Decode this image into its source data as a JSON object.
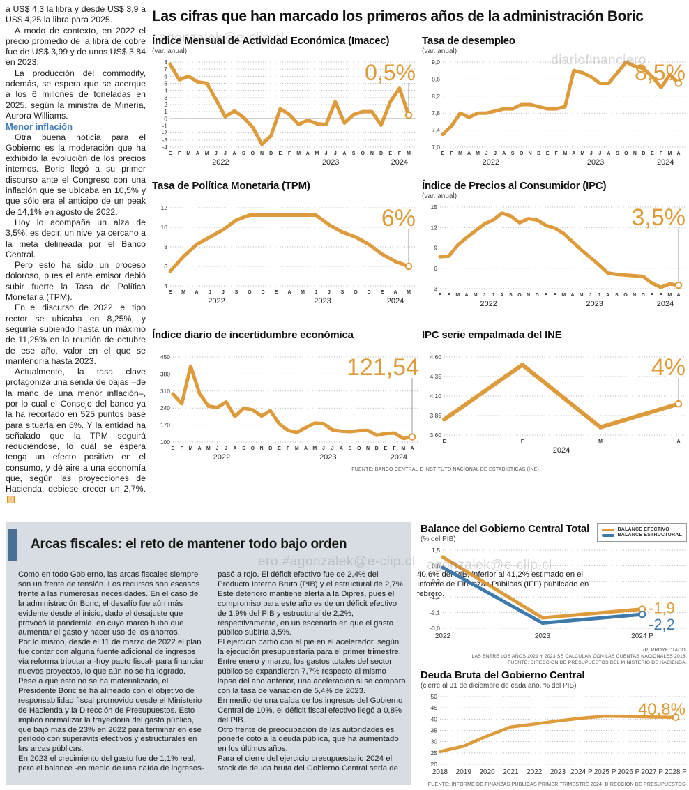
{
  "page": {
    "headline": "Las cifras que han marcado los primeros años de la administración Boric",
    "watermarks": [
      "agonzalek@e-clip.cl",
      "diariofinanciero",
      "ero.#agonzalek@e-clip.cl",
      "agonzalek@e-clip.cl"
    ]
  },
  "colors": {
    "orange": "#DE9B3C",
    "blue": "#3E7BAC",
    "subhead_blue": "#3E79B4",
    "accent_bar": "#4A7096",
    "box_bg": "#D8DDE4"
  },
  "left_article": {
    "intro_paragraphs": [
      "a US$ 4,3 la libra y desde US$ 3,9 a US$ 4,25 la libra para 2025.",
      "A modo de contexto, en 2022 el precio promedio de la libra de cobre fue de US$ 3,99 y de unos US$ 3,84 en 2023.",
      "La producción del commodity, además, se espera que se acerque a los 6 millones de toneladas en 2025, según la ministra de Minería, Aurora Williams."
    ],
    "subhead": "Menor inflación",
    "body_paragraphs": [
      "Otra buena noticia para el Gobierno es la moderación que ha exhibido la evolución de los precios internos. Boric llegó a su primer discurso ante el Congreso con una inflación que se ubicaba en 10,5% y que sólo era el anticipo de un peak de 14,1% en agosto de 2022.",
      "Hoy lo acompaña un alza de 3,5%, es decir, un nivel ya cercano a la meta delineada por el Banco Central.",
      "Pero esto ha sido un proceso doloroso, pues el ente emisor debió subir fuerte la Tasa de Política Monetaria (TPM).",
      "En el discurso de 2022, el tipo rector se ubicaba en 8,25%, y seguiría subiendo hasta un máximo de 11,25% en la reunión de octubre de ese año, valor en el que se mantendría hasta 2023.",
      "Actualmente, la tasa clave protagoniza una senda de bajas –de la mano de una menor inflación–, por lo cual el Consejo del banco ya la ha recortado en 525 puntos base para situarla en 6%. Y la entidad ha señalado que la TPM seguirá reduciéndose, lo cual se espera tenga un efecto positivo en el consumo, y dé aire a una economía que, según las proyecciones de Hacienda, debiese crecer un 2,7%."
    ]
  },
  "bottom_article": {
    "title": "Arcas fiscales: el reto de mantener todo bajo orden",
    "paragraphs": [
      "Como en todo Gobierno, las arcas fiscales siempre son un frente de tensión. Los recursos son escasos frente a las numerosas necesidades. En el caso de la administración Boric, el desafío fue aún más evidente desde el inicio, dado el desajuste que provocó la pandemia, en cuyo marco hubo que aumentar el gasto y hacer uso de los ahorros.",
      "Por lo mismo, desde el 11 de marzo de 2022 el plan fue contar con alguna fuente adicional de ingresos vía reforma tributaria -hoy pacto fiscal- para financiar nuevos proyectos, lo que aún no se ha logrado.",
      "Pese a que esto no se ha materializado, el Presidente Boric se ha alineado con el objetivo de responsabilidad fiscal promovido desde el Ministerio de Hacienda y la Dirección de Presupuestos. Esto implicó normalizar la trayectoria del gasto público, que bajó más de 23% en 2022 para terminar en ese período con superávits efectivos y estructurales en las arcas públicas.",
      "En 2023 el crecimiento del gasto fue de 1,1% real, pero el balance -en medio de una caída de ingresos- pasó a rojo. El déficit efectivo fue de 2,4% del Producto Interno Bruto (PIB) y el estructural de 2,7%. Este deterioro mantiene alerta a la Dipres, pues el compromiso para este año es de un déficit efectivo de 1,9% del PIB y estructural de 2,2%, respectivamente, en un escenario en que el gasto público subiría 3,5%.",
      "El ejercicio partió con el pie en el acelerador, según la ejecución presupuestaria para el primer trimestre. Entre enero y marzo, los gastos totales del sector público se expandieron 7,7% respecto al mismo lapso del año anterior, una aceleración si se compara con la tasa de variación de 5,4% de 2023.",
      "En medio de una caída de los ingresos del Gobierno Central de 10%, el déficit fiscal efectivo llegó a 0,8% del PIB.",
      "Otro frente de preocupación de las autoridades es ponerle coto a la deuda pública, que ha aumentado en los últimos años.",
      "Para el cierre del ejercicio presupuestario 2024 el stock de deuda bruta del Gobierno Central sería de 40,6% del PIB, inferior al 41,2% estimado en el Informe de Finanzas Públicas (IFP) publicado en febrero."
    ]
  },
  "chart_data": [
    {
      "id": "imacec",
      "type": "line",
      "title": "Índice Mensual de Actividad Económica (Imacec)",
      "subtitle": "(var. anual)",
      "ylim": [
        -4,
        8
      ],
      "ytick_vals": [
        8,
        7,
        6,
        5,
        4,
        3,
        2,
        1,
        0,
        -1,
        -2,
        -3,
        -4
      ],
      "ytick_labels": [
        "8",
        "7",
        "6",
        "5",
        "4",
        "3",
        "2",
        "1",
        "0",
        "-1",
        "-2",
        "-3",
        "-4"
      ],
      "zero_line": true,
      "x_labels": [
        "E",
        "F",
        "M",
        "A",
        "M",
        "J",
        "J",
        "A",
        "S",
        "O",
        "N",
        "D",
        "E",
        "F",
        "M",
        "A",
        "M",
        "J",
        "J",
        "A",
        "S",
        "O",
        "N",
        "D",
        "E",
        "F",
        "M"
      ],
      "years": [
        {
          "label": "2022",
          "start": 0,
          "end": 11
        },
        {
          "label": "2023",
          "start": 12,
          "end": 23
        },
        {
          "label": "2024",
          "start": 24,
          "end": 26
        }
      ],
      "series": [
        {
          "name": "Imacec",
          "color": "orange",
          "values": [
            7.7,
            5.5,
            6.0,
            5.2,
            5.0,
            2.7,
            0.3,
            1.1,
            0.2,
            -1.2,
            -3.6,
            -2.4,
            1.4,
            0.6,
            -0.8,
            -0.2,
            -0.7,
            -0.8,
            2.4,
            -0.6,
            0.6,
            1.0,
            1.0,
            -0.9,
            2.4,
            4.3,
            0.5
          ]
        }
      ],
      "callout": "0,5%",
      "callout_line": true
    },
    {
      "id": "desempleo",
      "type": "line",
      "title": "Tasa de desempleo",
      "subtitle": "(var. anual)",
      "ylim": [
        7.0,
        9.0
      ],
      "ytick_vals": [
        9.0,
        8.6,
        8.2,
        7.8,
        7.4,
        7.0
      ],
      "ytick_labels": [
        "9,0",
        "8,6",
        "8,2",
        "7,8",
        "7,4",
        "7,0"
      ],
      "x_labels": [
        "E",
        "F",
        "M",
        "A",
        "M",
        "J",
        "J",
        "A",
        "S",
        "O",
        "N",
        "D",
        "E",
        "F",
        "M",
        "A",
        "M",
        "J",
        "J",
        "A",
        "S",
        "O",
        "N",
        "D",
        "E",
        "F",
        "M",
        "A"
      ],
      "years": [
        {
          "label": "2022",
          "start": 0,
          "end": 11
        },
        {
          "label": "2023",
          "start": 12,
          "end": 23
        },
        {
          "label": "2024",
          "start": 24,
          "end": 27
        }
      ],
      "series": [
        {
          "name": "Tasa de desempleo",
          "color": "orange",
          "values": [
            7.3,
            7.5,
            7.8,
            7.7,
            7.8,
            7.8,
            7.85,
            7.9,
            7.9,
            8.0,
            8.0,
            7.95,
            7.9,
            7.9,
            7.95,
            8.8,
            8.75,
            8.65,
            8.5,
            8.5,
            8.75,
            9.0,
            8.9,
            8.85,
            8.65,
            8.4,
            8.7,
            8.5
          ]
        }
      ],
      "callout": "8,5%",
      "callout_line": true
    },
    {
      "id": "tpm",
      "type": "line",
      "title": "Tasa de Política Monetaria (TPM)",
      "subtitle": "",
      "ylim": [
        4,
        12
      ],
      "ytick_vals": [
        12,
        10,
        8,
        6,
        4
      ],
      "ytick_labels": [
        "12",
        "10",
        "8",
        "6",
        "4"
      ],
      "x_labels": [
        "E",
        "M",
        "A",
        "J",
        "J",
        "S",
        "O",
        "D",
        "E",
        "A",
        "M",
        "J",
        "J",
        "S",
        "O",
        "D",
        "E",
        "A",
        "M"
      ],
      "years": [
        {
          "label": "2022",
          "start": 0,
          "end": 7
        },
        {
          "label": "2023",
          "start": 8,
          "end": 15
        },
        {
          "label": "2024",
          "start": 16,
          "end": 18
        }
      ],
      "series": [
        {
          "name": "TPM",
          "color": "orange",
          "values": [
            5.5,
            7.0,
            8.25,
            9.0,
            9.75,
            10.75,
            11.25,
            11.25,
            11.25,
            11.25,
            11.25,
            11.25,
            10.25,
            9.5,
            9.0,
            8.25,
            7.25,
            6.5,
            6.0
          ]
        }
      ],
      "callout": "6%",
      "callout_line": true
    },
    {
      "id": "ipc",
      "type": "line",
      "title": "Índice de Precios al Consumidor (IPC)",
      "subtitle": "(var. anual)",
      "ylim": [
        3,
        15
      ],
      "ytick_vals": [
        15,
        12,
        9,
        6,
        3
      ],
      "ytick_labels": [
        "15",
        "12",
        "9",
        "6",
        "3"
      ],
      "x_labels": [
        "E",
        "F",
        "M",
        "A",
        "M",
        "J",
        "J",
        "A",
        "S",
        "O",
        "N",
        "D",
        "E",
        "F",
        "M",
        "A",
        "M",
        "J",
        "J",
        "A",
        "S",
        "O",
        "N",
        "D",
        "E",
        "F",
        "M",
        "A"
      ],
      "years": [
        {
          "label": "2022",
          "start": 0,
          "end": 11
        },
        {
          "label": "2023",
          "start": 12,
          "end": 23
        },
        {
          "label": "2024",
          "start": 24,
          "end": 27
        }
      ],
      "series": [
        {
          "name": "IPC",
          "color": "orange",
          "values": [
            7.7,
            7.8,
            9.4,
            10.5,
            11.5,
            12.5,
            13.1,
            14.1,
            13.7,
            12.7,
            13.3,
            13.1,
            12.3,
            11.9,
            11.1,
            9.9,
            8.7,
            7.6,
            6.5,
            5.3,
            5.1,
            5.0,
            4.9,
            4.8,
            3.8,
            3.2,
            3.7,
            3.5
          ]
        }
      ],
      "callout": "3,5%",
      "callout_line": true
    },
    {
      "id": "incertidumbre",
      "type": "line",
      "title": "Índice diario de incertidumbre económica",
      "subtitle": "",
      "ylim": [
        100,
        450
      ],
      "ytick_vals": [
        450,
        380,
        310,
        240,
        170,
        100
      ],
      "ytick_labels": [
        "450",
        "380",
        "310",
        "240",
        "170",
        "100"
      ],
      "x_labels": [
        "E",
        "F",
        "M",
        "A",
        "M",
        "J",
        "J",
        "A",
        "S",
        "O",
        "N",
        "D",
        "E",
        "F",
        "M",
        "A",
        "M",
        "J",
        "J",
        "A",
        "S",
        "O",
        "N",
        "D",
        "E",
        "F",
        "M",
        "A"
      ],
      "years": [
        {
          "label": "2022",
          "start": 0,
          "end": 11
        },
        {
          "label": "2023",
          "start": 12,
          "end": 23
        },
        {
          "label": "2024",
          "start": 24,
          "end": 27
        }
      ],
      "series": [
        {
          "name": "Incertidumbre económica",
          "color": "orange",
          "values": [
            298,
            258,
            412,
            300,
            248,
            242,
            265,
            205,
            240,
            232,
            207,
            229,
            175,
            148,
            140,
            160,
            178,
            176,
            150,
            145,
            143,
            147,
            148,
            128,
            135,
            137,
            115,
            121.54
          ]
        }
      ],
      "callout": "121,54",
      "callout_line": true,
      "source": "FUENTE: BANCO CENTRAL E INSTITUTO NACIONAL DE ESTADÍSTICAS (INE)"
    },
    {
      "id": "ipc_empalmada",
      "type": "line",
      "title": "IPC serie empalmada del INE",
      "subtitle": "",
      "ylim": [
        3.6,
        4.6
      ],
      "ytick_vals": [
        4.6,
        4.35,
        4.1,
        3.85,
        3.6
      ],
      "ytick_labels": [
        "4,60",
        "4,35",
        "4,10",
        "3,85",
        "3,60"
      ],
      "x_labels": [
        "E",
        "F",
        "M",
        "A"
      ],
      "years": [
        {
          "label": "2024",
          "start": 0,
          "end": 3
        }
      ],
      "series": [
        {
          "name": "IPC serie empalmada",
          "color": "orange",
          "values": [
            3.8,
            4.5,
            3.7,
            4.0
          ]
        }
      ],
      "callout": "4%",
      "callout_line": true
    },
    {
      "id": "balance",
      "type": "line",
      "title": "Balance del Gobierno Central Total",
      "subtitle": "(% del PIB)",
      "ylim": [
        -3.0,
        1.5
      ],
      "ytick_vals": [
        1.5,
        0.6,
        -0.3,
        -1.2,
        -2.1,
        -3.0
      ],
      "ytick_labels": [
        "1,5",
        "0,6",
        "-0,3",
        "-1,2",
        "-2,1",
        "-3,0"
      ],
      "x_labels": [
        "2022",
        "2023",
        "2024 P"
      ],
      "big_x": true,
      "series": [
        {
          "name": "BALANCE EFECTIVO",
          "color": "orange",
          "values": [
            1.1,
            -2.4,
            -1.9
          ],
          "end_label": "-1,9"
        },
        {
          "name": "BALANCE ESTRUCTURAL",
          "color": "blue",
          "values": [
            0.5,
            -2.7,
            -2.2
          ],
          "end_label": "-2,2"
        }
      ],
      "legend": [
        {
          "label": "BALANCE EFECTIVO",
          "color": "orange"
        },
        {
          "label": "BALANCE ESTRUCTURAL",
          "color": "blue"
        }
      ],
      "notes": [
        "(P) PROYECTADO.",
        "LAS ENTRE LOS AÑOS 2021 Y 2023 SE CALCULAN  CON LAS CUENTAS NACIONALES 2018.",
        "FUENTE: DIRECCIÓN DE PRESUPUESTOS DEL MINISTERIO DE HACIENDA."
      ]
    },
    {
      "id": "deuda",
      "type": "line",
      "title": "Deuda Bruta del Gobierno Central",
      "subtitle": "(cierre al 31 de diciembre de cada año, % del PIB)",
      "ylim": [
        20,
        50
      ],
      "ytick_vals": [
        50,
        45,
        40,
        35,
        30,
        25,
        20
      ],
      "ytick_labels": [
        "50",
        "45",
        "40",
        "35",
        "30",
        "25",
        "20"
      ],
      "x_labels": [
        "2018",
        "2019",
        "2020",
        "2021",
        "2022",
        "2023",
        "2024 P",
        "2025 P",
        "2026 P",
        "2027 P",
        "2028 P"
      ],
      "big_x": true,
      "series": [
        {
          "name": "Deuda bruta",
          "color": "orange",
          "values": [
            25.6,
            28.0,
            32.5,
            36.5,
            37.8,
            39.2,
            40.4,
            41.3,
            41.2,
            40.9,
            40.8
          ]
        }
      ],
      "callout": "40,8%",
      "callout_line": false,
      "source": "FUENTE: INFORME DE FINANZAS PÚBLICAS PRIMER TRIMESTRE 2024, DIRECCIÓN DE PRESUPUESTOS."
    }
  ]
}
